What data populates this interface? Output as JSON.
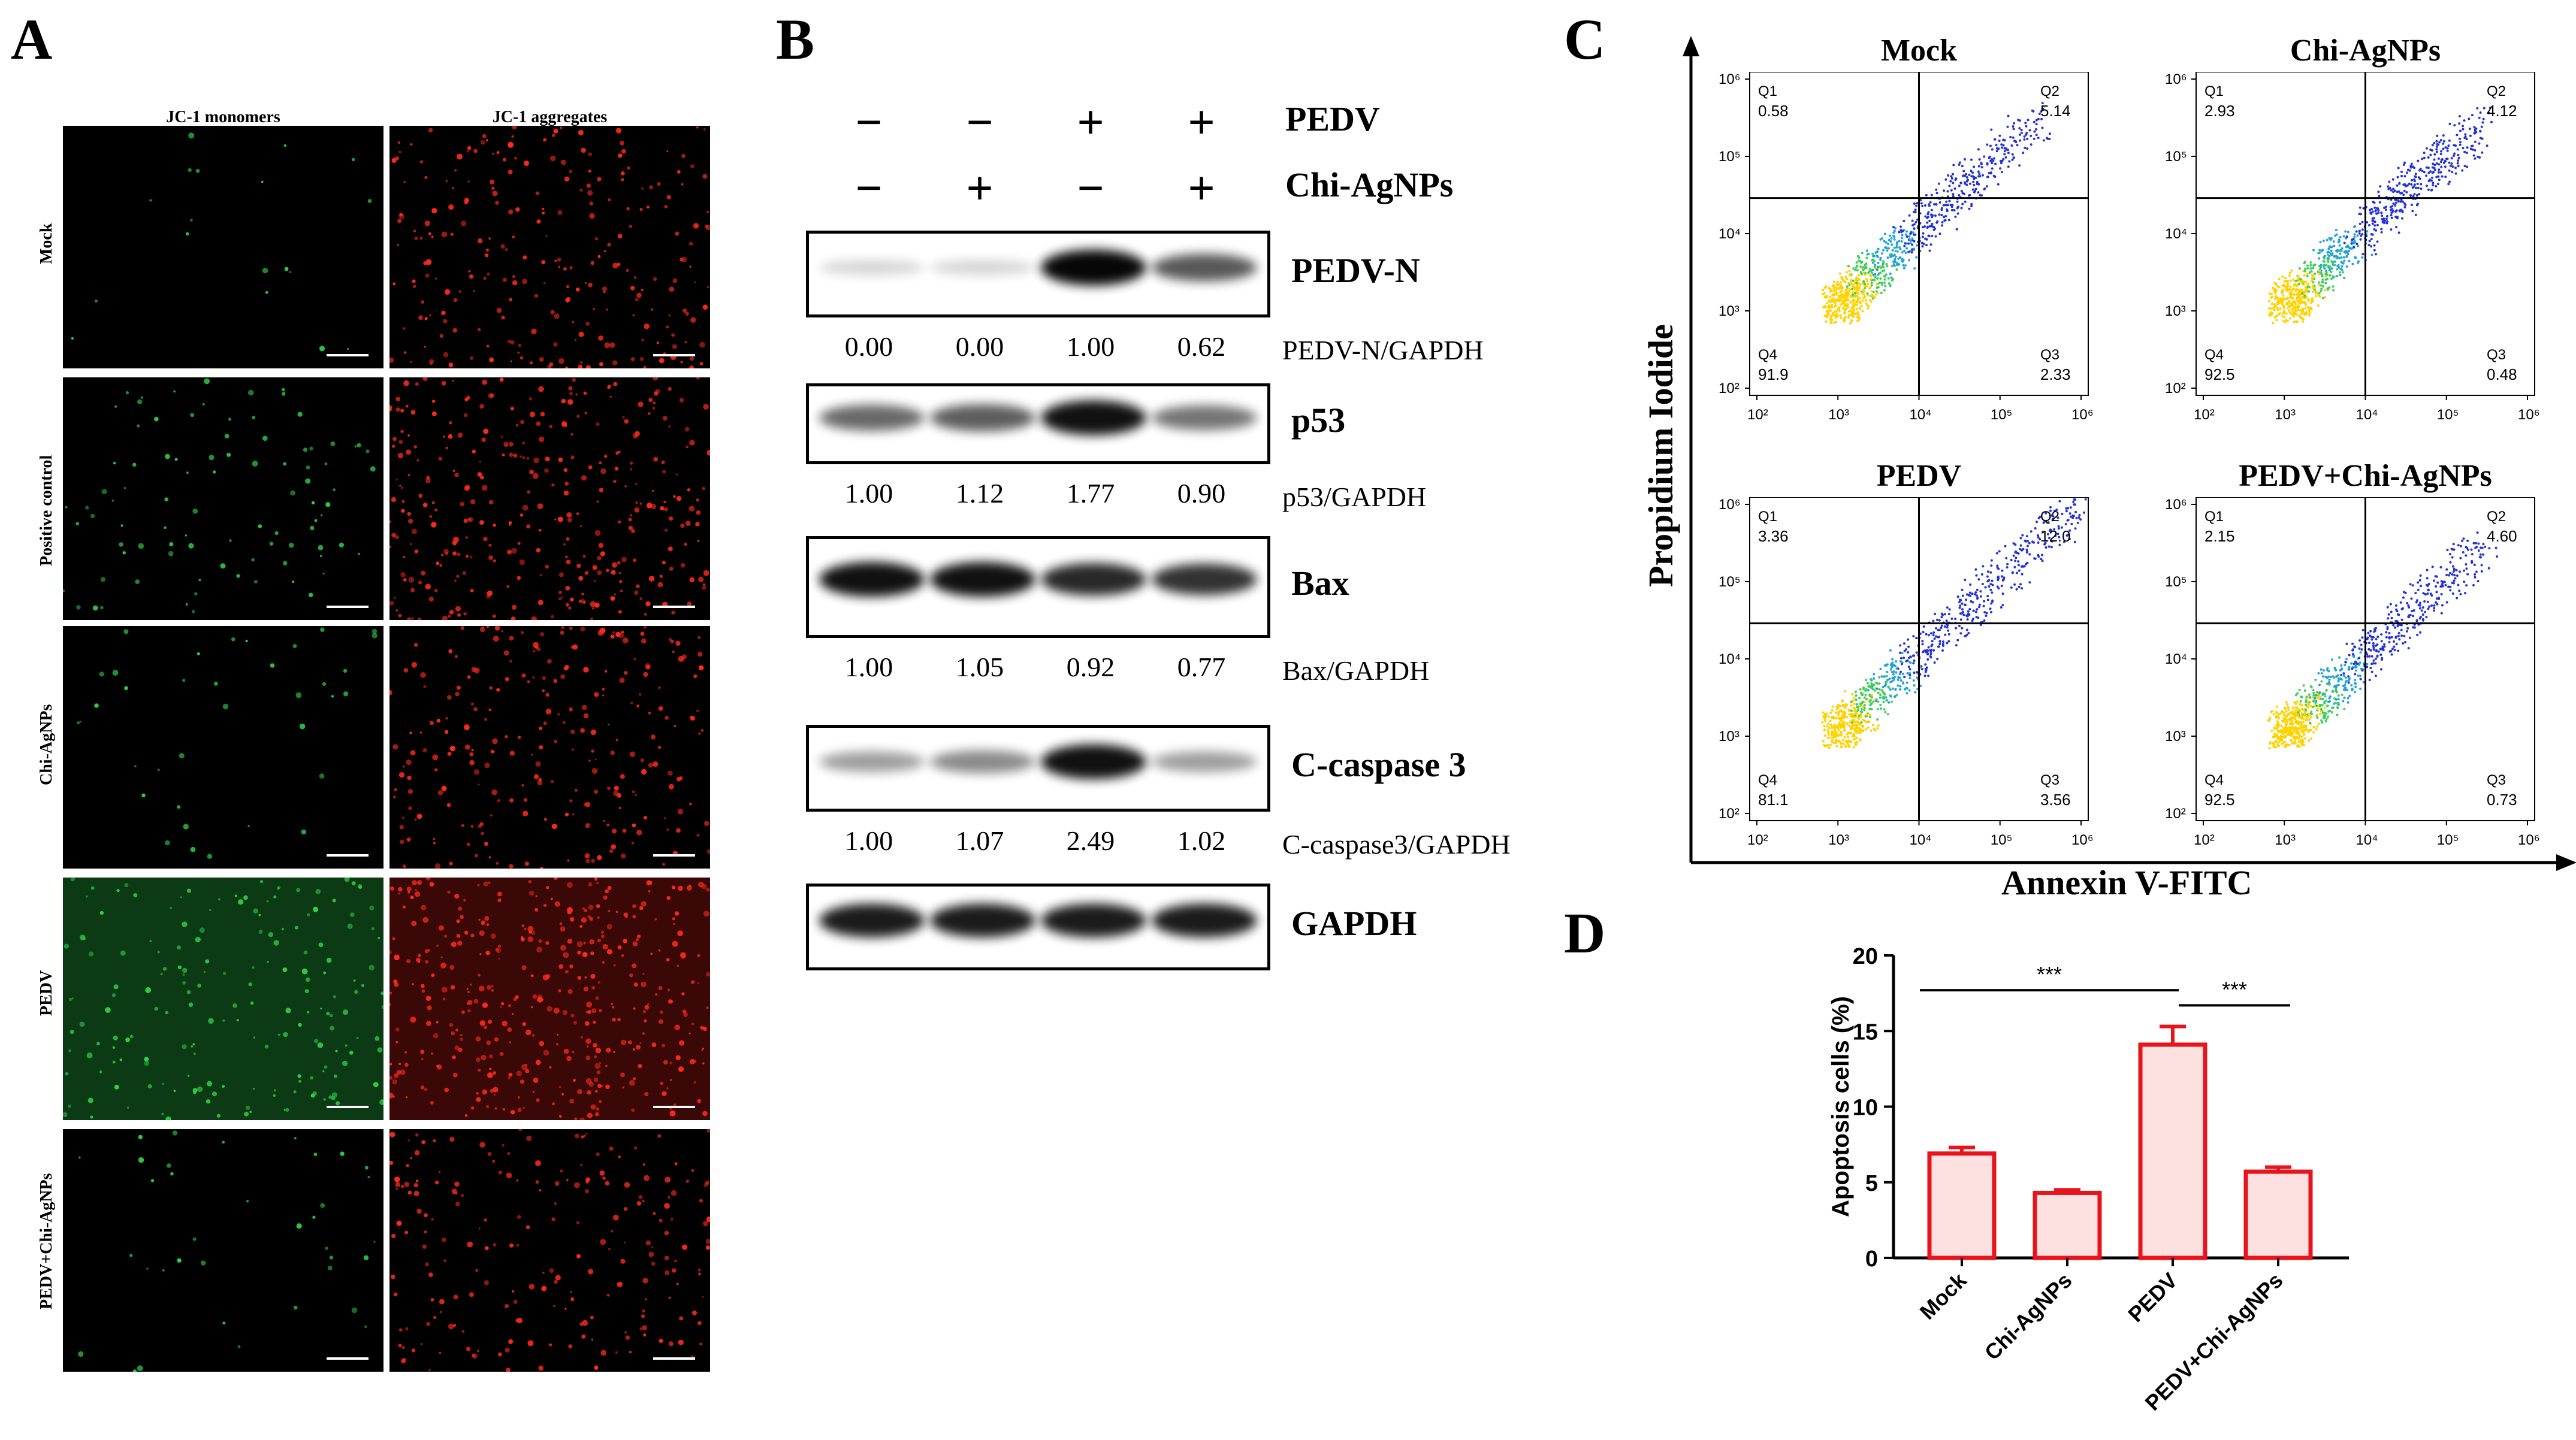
{
  "panels": {
    "A": "A",
    "B": "B",
    "C": "C",
    "D": "D"
  },
  "panel_a": {
    "col_headers": [
      "JC-1 monomers",
      "JC-1 aggregates"
    ],
    "rows": [
      "Mock",
      "Positive control",
      "Chi-AgNPs",
      "PEDV",
      "PEDV+Chi-AgNPs"
    ],
    "green_density": [
      0.1,
      0.5,
      0.2,
      1.0,
      0.2
    ],
    "red_density": [
      0.6,
      0.8,
      0.6,
      1.0,
      0.5
    ],
    "colors": {
      "green": "#2fd24a",
      "red": "#ff2a1a"
    }
  },
  "panel_b": {
    "pedv_label": "PEDV",
    "chi_label": "Chi-AgNPs",
    "pedv_signs": [
      "−",
      "−",
      "+",
      "+"
    ],
    "chi_signs": [
      "−",
      "+",
      "−",
      "+"
    ],
    "blots": [
      {
        "name": "PEDV-N",
        "ratio_label": "PEDV-N/GAPDH",
        "values": [
          "0.00",
          "0.00",
          "1.00",
          "0.62"
        ],
        "intensity": [
          0.05,
          0.05,
          1.0,
          0.62
        ]
      },
      {
        "name": "p53",
        "ratio_label": "p53/GAPDH",
        "values": [
          "1.00",
          "1.12",
          "1.77",
          "0.90"
        ],
        "intensity": [
          0.55,
          0.6,
          0.95,
          0.5
        ]
      },
      {
        "name": "Bax",
        "ratio_label": "Bax/GAPDH",
        "values": [
          "1.00",
          "1.05",
          "0.92",
          "0.77"
        ],
        "intensity": [
          0.95,
          0.95,
          0.85,
          0.8
        ]
      },
      {
        "name": "C-caspase 3",
        "ratio_label": "C-caspase3/GAPDH",
        "values": [
          "1.00",
          "1.07",
          "2.49",
          "1.02"
        ],
        "intensity": [
          0.3,
          0.4,
          0.95,
          0.3
        ]
      },
      {
        "name": "GAPDH",
        "ratio_label": "",
        "values": [],
        "intensity": [
          0.9,
          0.9,
          0.9,
          0.9
        ]
      }
    ]
  },
  "panel_c": {
    "ylabel": "Propidium Iodide",
    "xlabel": "Annexin V-FITC",
    "tick_labels": [
      "10²",
      "10³",
      "10⁴",
      "10⁵",
      "10⁶"
    ],
    "plots": [
      {
        "title": "Mock",
        "q1": "0.58",
        "q2": "5.14",
        "q3": "2.33",
        "q4": "91.9"
      },
      {
        "title": "Chi-AgNPs",
        "q1": "2.93",
        "q2": "4.12",
        "q3": "0.48",
        "q4": "92.5"
      },
      {
        "title": "PEDV",
        "q1": "3.36",
        "q2": "12.0",
        "q3": "3.56",
        "q4": "81.1"
      },
      {
        "title": "PEDV+Chi-AgNPs",
        "q1": "2.15",
        "q2": "4.60",
        "q3": "0.73",
        "q4": "92.5"
      }
    ],
    "quadrant_names": [
      "Q1",
      "Q2",
      "Q3",
      "Q4"
    ]
  },
  "chart_data": {
    "type": "bar",
    "categories": [
      "Mock",
      "Chi-AgNPs",
      "PEDV",
      "PEDV+Chi-AgNPs"
    ],
    "values": [
      6.9,
      4.3,
      14.1,
      5.7
    ],
    "errors": [
      0.4,
      0.2,
      1.2,
      0.3
    ],
    "ylabel": "Apoptosis cells (%)",
    "ylim": [
      0,
      20
    ],
    "yticks": [
      "0",
      "5",
      "10",
      "15",
      "20"
    ],
    "significance": [
      {
        "from": "Mock",
        "to": "PEDV",
        "label": "***"
      },
      {
        "from": "PEDV",
        "to": "PEDV+Chi-AgNPs",
        "label": "***"
      }
    ],
    "bar_fill": "#fde0e0",
    "bar_stroke": "#e8141c"
  }
}
